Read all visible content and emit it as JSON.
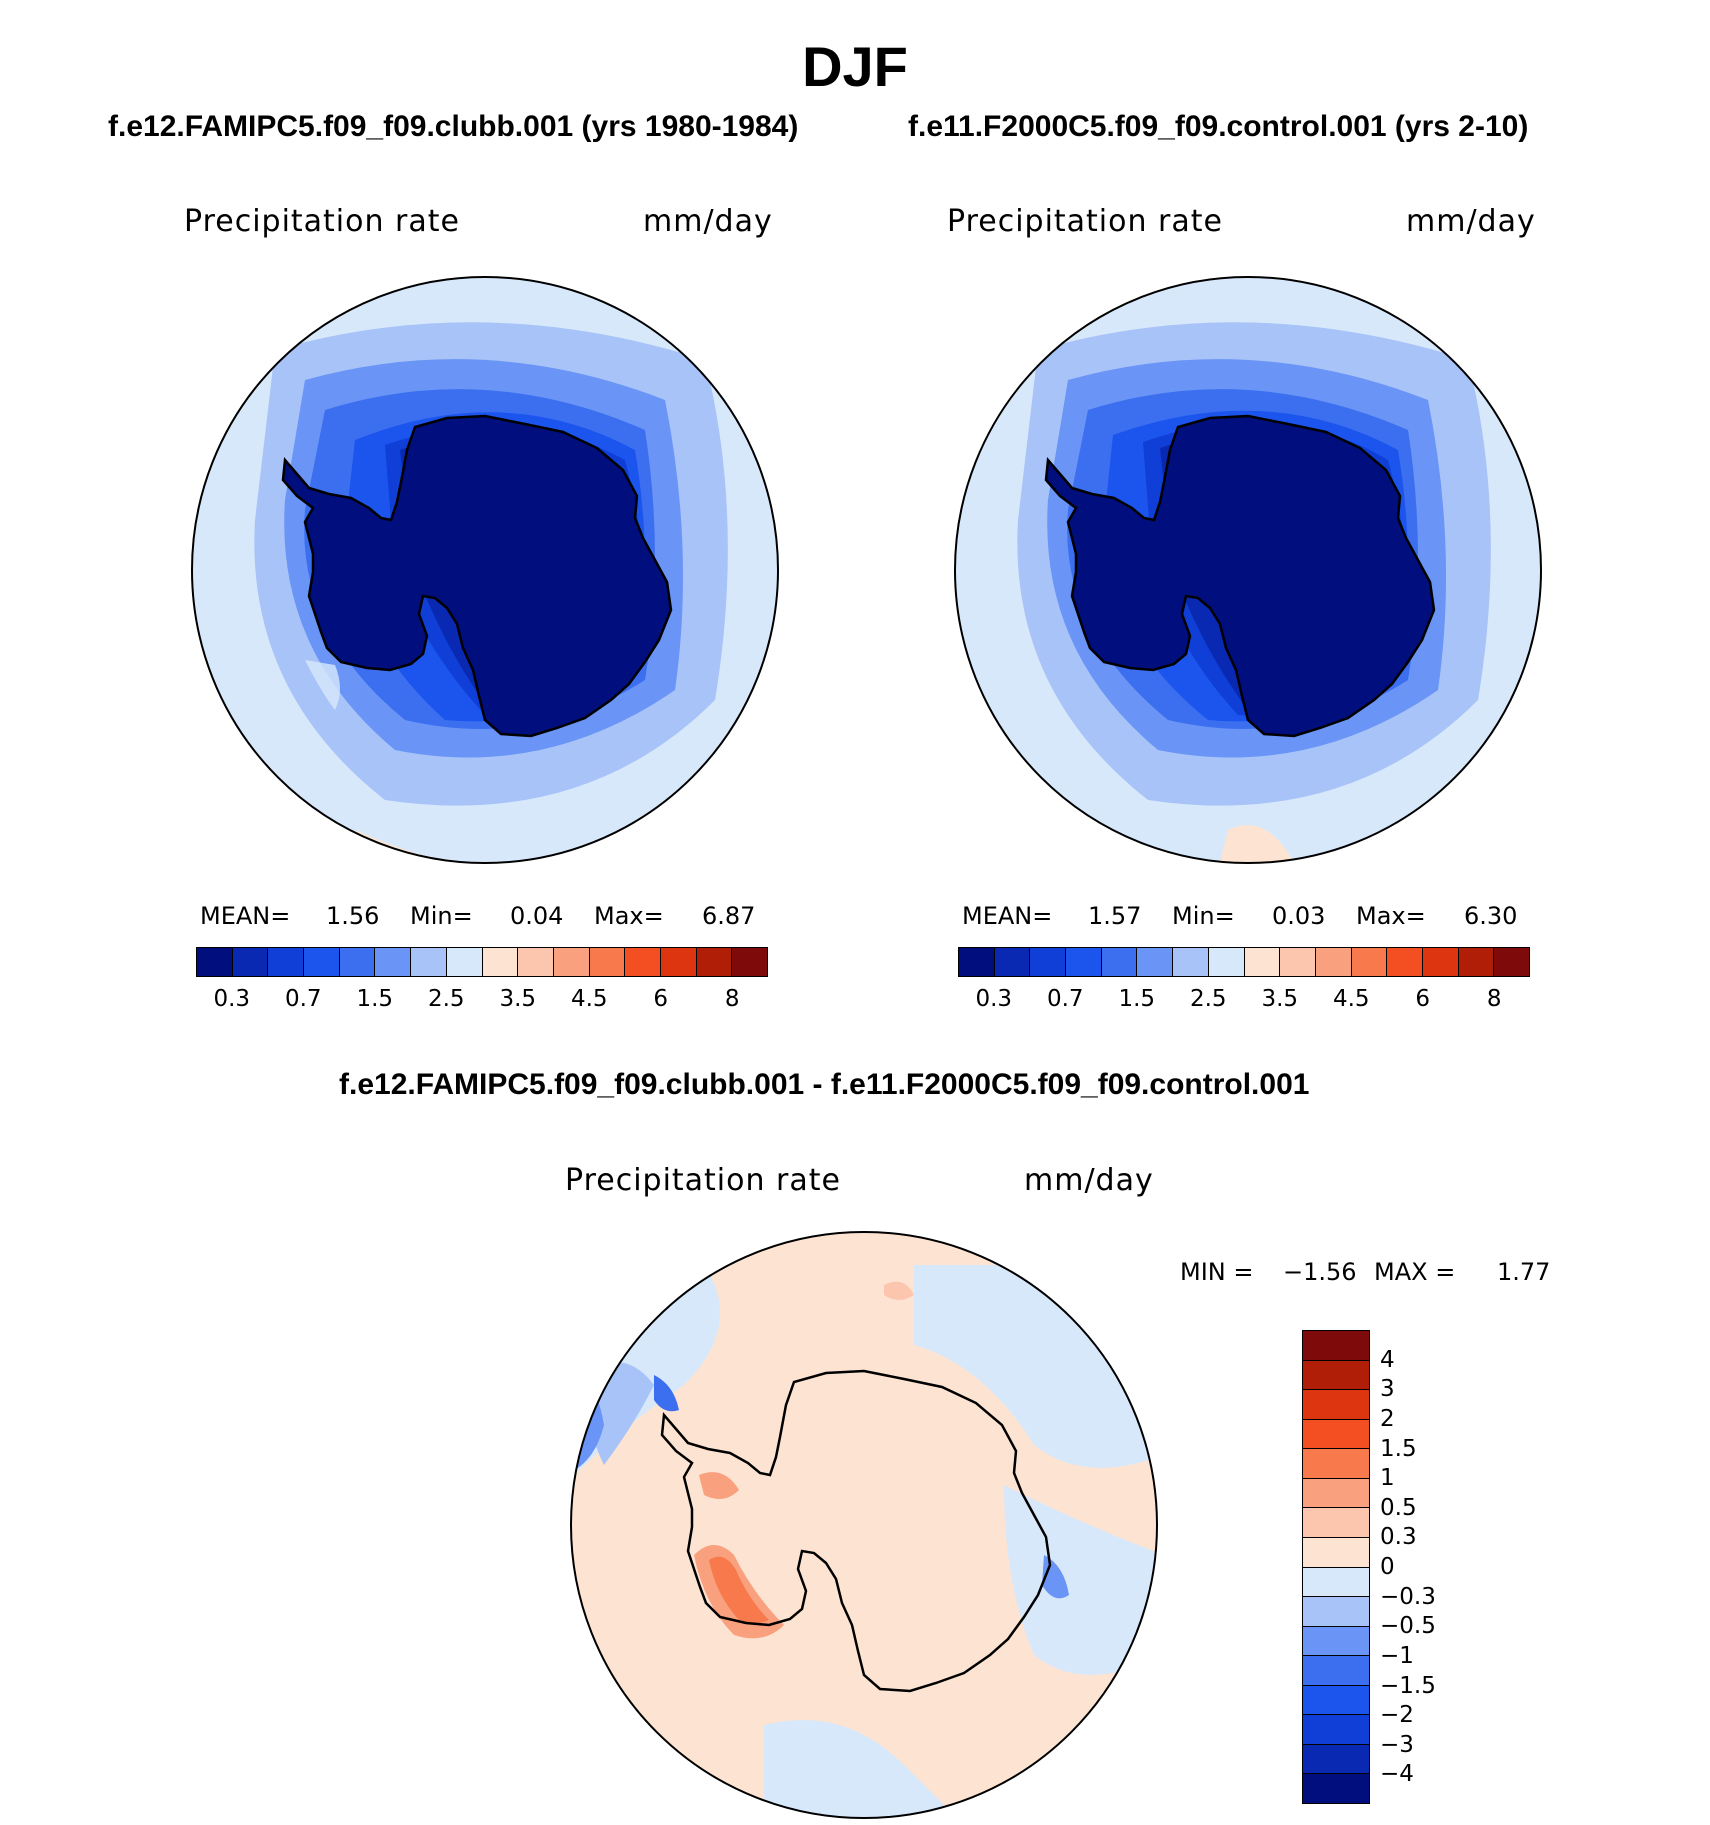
{
  "title": "DJF",
  "panels": [
    {
      "case_title": "f.e12.FAMIPC5.f09_f09.clubb.001 (yrs 1980-1984)",
      "field_label": "Precipitation  rate",
      "units": "mm/day",
      "stats": {
        "mean_label": "MEAN=",
        "mean": "1.56",
        "min_label": "Min=",
        "min": "0.04",
        "max_label": "Max=",
        "max": "6.87"
      }
    },
    {
      "case_title": "f.e11.F2000C5.f09_f09.control.001 (yrs 2-10)",
      "field_label": "Precipitation  rate",
      "units": "mm/day",
      "stats": {
        "mean_label": "MEAN=",
        "mean": "1.57",
        "min_label": "Min=",
        "min": "0.03",
        "max_label": "Max=",
        "max": "6.30"
      }
    },
    {
      "case_title": "f.e12.FAMIPC5.f09_f09.clubb.001 - f.e11.F2000C5.f09_f09.control.001",
      "field_label": "Precipitation  rate",
      "units": "mm/day",
      "stats": {
        "min_label": "MIN  =",
        "min": "−1.56",
        "max_label": "MAX  =",
        "max": "1.77"
      }
    }
  ],
  "colorbar_abs": {
    "colors": [
      "#000e7e",
      "#0a29b3",
      "#0f3fd6",
      "#1c54ee",
      "#3b6ff0",
      "#6a94f5",
      "#a7c3f8",
      "#d8e8fb",
      "#fde4d2",
      "#fcc6ae",
      "#f9a07e",
      "#f87a4c",
      "#f44f22",
      "#dc3510",
      "#b11e08",
      "#7e0a0a"
    ],
    "ticks": [
      "0.3",
      "0.7",
      "1.5",
      "2.5",
      "3.5",
      "4.5",
      "6",
      "8"
    ]
  },
  "colorbar_diff": {
    "colors": [
      "#7e0a0a",
      "#b11e08",
      "#dc3510",
      "#f44f22",
      "#f87a4c",
      "#f9a07e",
      "#fcc6ae",
      "#fde4d2",
      "#d8e8fb",
      "#a7c3f8",
      "#6a94f5",
      "#3b6ff0",
      "#1c54ee",
      "#0f3fd6",
      "#0a29b3",
      "#000e7e"
    ],
    "ticks": [
      "4",
      "3",
      "2",
      "1.5",
      "1",
      "0.5",
      "0.3",
      "0",
      "−0.3",
      "−0.5",
      "−1",
      "−1.5",
      "−2",
      "−3",
      "−4"
    ]
  }
}
